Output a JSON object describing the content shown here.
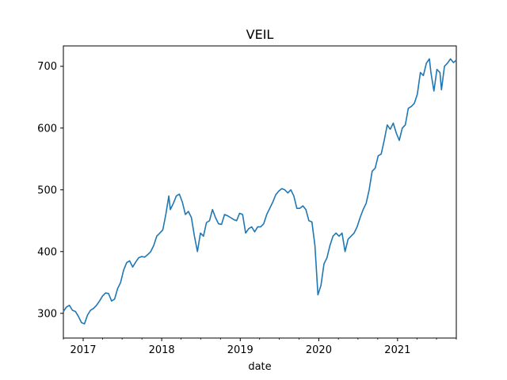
{
  "chart_data": {
    "type": "line",
    "title": "VEIL",
    "xlabel": "date",
    "ylabel": "",
    "x_ticks": [
      "2017",
      "2018",
      "2019",
      "2020",
      "2021"
    ],
    "y_ticks": [
      300,
      400,
      500,
      600,
      700
    ],
    "xlim": [
      "2016-10-01",
      "2021-10-01"
    ],
    "ylim": [
      260,
      733
    ],
    "grid": false,
    "series": [
      {
        "color": "#1f77b4",
        "points": [
          [
            "2016-10-01",
            303
          ],
          [
            "2016-10-15",
            310
          ],
          [
            "2016-10-29",
            313
          ],
          [
            "2016-11-12",
            305
          ],
          [
            "2016-11-26",
            303
          ],
          [
            "2016-12-10",
            295
          ],
          [
            "2016-12-24",
            285
          ],
          [
            "2017-01-07",
            283
          ],
          [
            "2017-01-21",
            297
          ],
          [
            "2017-02-04",
            305
          ],
          [
            "2017-02-18",
            308
          ],
          [
            "2017-03-04",
            313
          ],
          [
            "2017-03-18",
            320
          ],
          [
            "2017-04-01",
            328
          ],
          [
            "2017-04-15",
            333
          ],
          [
            "2017-04-29",
            332
          ],
          [
            "2017-05-13",
            320
          ],
          [
            "2017-05-27",
            323
          ],
          [
            "2017-06-10",
            340
          ],
          [
            "2017-06-24",
            350
          ],
          [
            "2017-07-08",
            370
          ],
          [
            "2017-07-22",
            382
          ],
          [
            "2017-08-05",
            385
          ],
          [
            "2017-08-19",
            375
          ],
          [
            "2017-09-02",
            383
          ],
          [
            "2017-09-16",
            390
          ],
          [
            "2017-09-30",
            392
          ],
          [
            "2017-10-14",
            391
          ],
          [
            "2017-10-28",
            395
          ],
          [
            "2017-11-11",
            400
          ],
          [
            "2017-11-25",
            410
          ],
          [
            "2017-12-09",
            425
          ],
          [
            "2017-12-23",
            430
          ],
          [
            "2018-01-06",
            435
          ],
          [
            "2018-01-20",
            460
          ],
          [
            "2018-02-03",
            490
          ],
          [
            "2018-02-10",
            468
          ],
          [
            "2018-02-24",
            478
          ],
          [
            "2018-03-10",
            490
          ],
          [
            "2018-03-24",
            493
          ],
          [
            "2018-04-07",
            480
          ],
          [
            "2018-04-21",
            460
          ],
          [
            "2018-05-05",
            465
          ],
          [
            "2018-05-19",
            455
          ],
          [
            "2018-06-02",
            425
          ],
          [
            "2018-06-16",
            400
          ],
          [
            "2018-06-30",
            430
          ],
          [
            "2018-07-14",
            425
          ],
          [
            "2018-07-28",
            447
          ],
          [
            "2018-08-11",
            450
          ],
          [
            "2018-08-25",
            468
          ],
          [
            "2018-09-08",
            455
          ],
          [
            "2018-09-22",
            445
          ],
          [
            "2018-10-06",
            444
          ],
          [
            "2018-10-20",
            460
          ],
          [
            "2018-11-03",
            458
          ],
          [
            "2018-11-17",
            455
          ],
          [
            "2018-12-01",
            452
          ],
          [
            "2018-12-15",
            450
          ],
          [
            "2018-12-29",
            462
          ],
          [
            "2019-01-12",
            460
          ],
          [
            "2019-01-26",
            430
          ],
          [
            "2019-02-09",
            437
          ],
          [
            "2019-02-23",
            440
          ],
          [
            "2019-03-09",
            432
          ],
          [
            "2019-03-23",
            440
          ],
          [
            "2019-04-06",
            440
          ],
          [
            "2019-04-20",
            445
          ],
          [
            "2019-05-04",
            460
          ],
          [
            "2019-05-18",
            470
          ],
          [
            "2019-06-01",
            480
          ],
          [
            "2019-06-15",
            492
          ],
          [
            "2019-06-29",
            498
          ],
          [
            "2019-07-13",
            502
          ],
          [
            "2019-07-27",
            500
          ],
          [
            "2019-08-10",
            495
          ],
          [
            "2019-08-24",
            500
          ],
          [
            "2019-09-07",
            490
          ],
          [
            "2019-09-21",
            470
          ],
          [
            "2019-10-05",
            470
          ],
          [
            "2019-10-19",
            474
          ],
          [
            "2019-11-02",
            468
          ],
          [
            "2019-11-16",
            450
          ],
          [
            "2019-11-30",
            448
          ],
          [
            "2019-12-14",
            410
          ],
          [
            "2019-12-28",
            330
          ],
          [
            "2020-01-11",
            345
          ],
          [
            "2020-01-25",
            380
          ],
          [
            "2020-02-08",
            390
          ],
          [
            "2020-02-22",
            410
          ],
          [
            "2020-03-07",
            425
          ],
          [
            "2020-03-21",
            430
          ],
          [
            "2020-04-04",
            425
          ],
          [
            "2020-04-18",
            430
          ],
          [
            "2020-05-02",
            400
          ],
          [
            "2020-05-16",
            420
          ],
          [
            "2020-05-30",
            425
          ],
          [
            "2020-06-13",
            430
          ],
          [
            "2020-06-27",
            440
          ],
          [
            "2020-07-11",
            455
          ],
          [
            "2020-07-25",
            468
          ],
          [
            "2020-08-08",
            478
          ],
          [
            "2020-08-22",
            500
          ],
          [
            "2020-09-05",
            530
          ],
          [
            "2020-09-19",
            535
          ],
          [
            "2020-10-03",
            555
          ],
          [
            "2020-10-17",
            558
          ],
          [
            "2020-10-31",
            580
          ],
          [
            "2020-11-14",
            605
          ],
          [
            "2020-11-28",
            598
          ],
          [
            "2020-12-12",
            608
          ],
          [
            "2020-12-26",
            592
          ],
          [
            "2021-01-09",
            580
          ],
          [
            "2021-01-23",
            600
          ],
          [
            "2021-02-06",
            605
          ],
          [
            "2021-02-20",
            632
          ],
          [
            "2021-03-06",
            635
          ],
          [
            "2021-03-20",
            640
          ],
          [
            "2021-04-03",
            655
          ],
          [
            "2021-04-17",
            690
          ],
          [
            "2021-05-01",
            685
          ],
          [
            "2021-05-15",
            705
          ],
          [
            "2021-05-29",
            712
          ],
          [
            "2021-06-05",
            690
          ],
          [
            "2021-06-19",
            660
          ],
          [
            "2021-07-03",
            695
          ],
          [
            "2021-07-17",
            690
          ],
          [
            "2021-07-24",
            662
          ],
          [
            "2021-08-07",
            700
          ],
          [
            "2021-08-21",
            705
          ],
          [
            "2021-09-04",
            712
          ],
          [
            "2021-09-18",
            706
          ],
          [
            "2021-10-01",
            710
          ]
        ]
      }
    ]
  }
}
